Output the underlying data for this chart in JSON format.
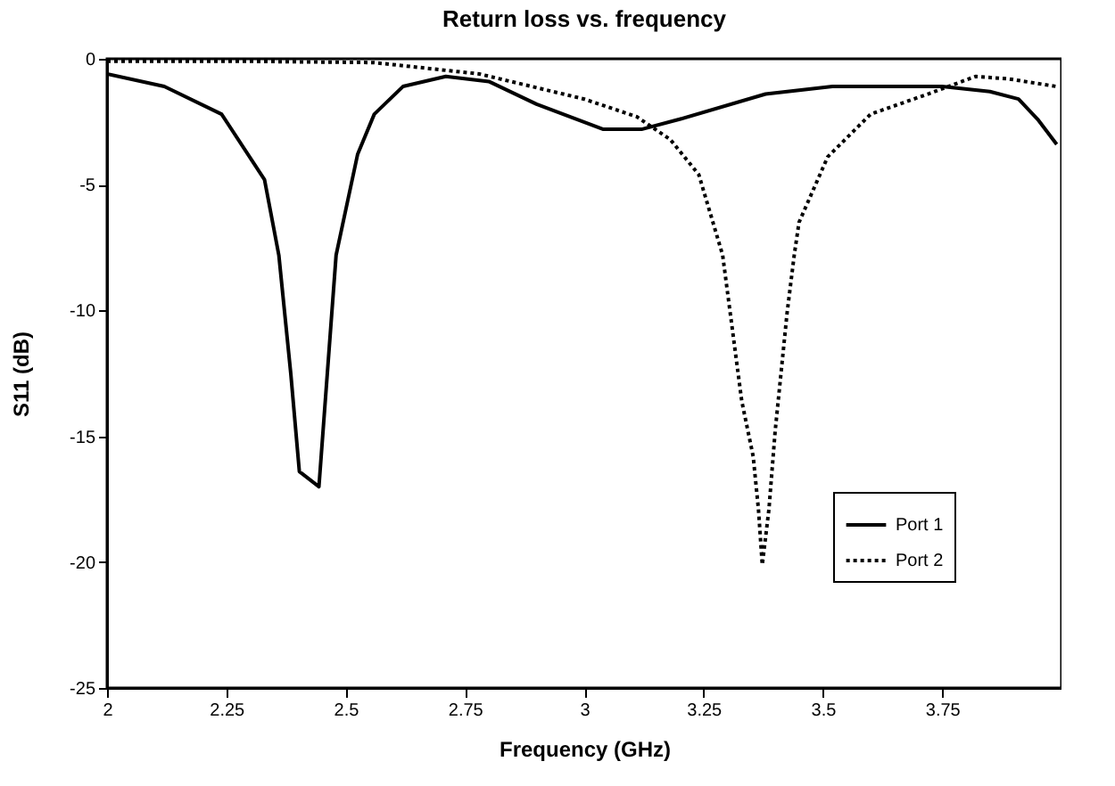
{
  "chart_data": {
    "type": "line",
    "title": "Return loss vs. frequency",
    "xlabel": "Frequency (GHz)",
    "ylabel": "S11 (dB)",
    "xlim": [
      2,
      4
    ],
    "ylim": [
      -25,
      0
    ],
    "xticks": [
      2,
      2.25,
      2.5,
      2.75,
      3,
      3.25,
      3.5,
      3.75
    ],
    "yticks": [
      0,
      -5,
      -10,
      -15,
      -20,
      -25
    ],
    "grid": false,
    "legend": "bottom right",
    "marker": "none",
    "series": [
      {
        "name": "Port 1",
        "color": "#000000",
        "line_style": "solid",
        "x": [
          2.0,
          2.12,
          2.24,
          2.33,
          2.36,
          2.385,
          2.403,
          2.444,
          2.48,
          2.525,
          2.56,
          2.62,
          2.71,
          2.8,
          2.9,
          3.04,
          3.12,
          3.2,
          3.38,
          3.52,
          3.75,
          3.85,
          3.91,
          3.95,
          3.99
        ],
        "values": [
          -0.6,
          -1.1,
          -2.2,
          -4.8,
          -7.8,
          -12.5,
          -16.4,
          -17.0,
          -7.8,
          -3.8,
          -2.2,
          -1.1,
          -0.7,
          -0.9,
          -1.8,
          -2.8,
          -2.8,
          -2.4,
          -1.4,
          -1.1,
          -1.1,
          -1.3,
          -1.6,
          -2.4,
          -3.4
        ]
      },
      {
        "name": "Port 2",
        "color": "#000000",
        "line_style": "dotted",
        "x": [
          2.0,
          2.3,
          2.56,
          2.78,
          3.0,
          3.11,
          3.18,
          3.24,
          3.29,
          3.33,
          3.354,
          3.365,
          3.373,
          3.387,
          3.4,
          3.425,
          3.44,
          3.45,
          3.51,
          3.6,
          3.72,
          3.82,
          3.89,
          3.99
        ],
        "values": [
          -0.1,
          -0.1,
          -0.15,
          -0.6,
          -1.6,
          -2.3,
          -3.2,
          -4.6,
          -7.8,
          -13.6,
          -15.8,
          -17.9,
          -20.1,
          -17.9,
          -14.8,
          -10.1,
          -7.8,
          -6.5,
          -3.9,
          -2.2,
          -1.4,
          -0.7,
          -0.8,
          -1.1
        ]
      }
    ]
  }
}
